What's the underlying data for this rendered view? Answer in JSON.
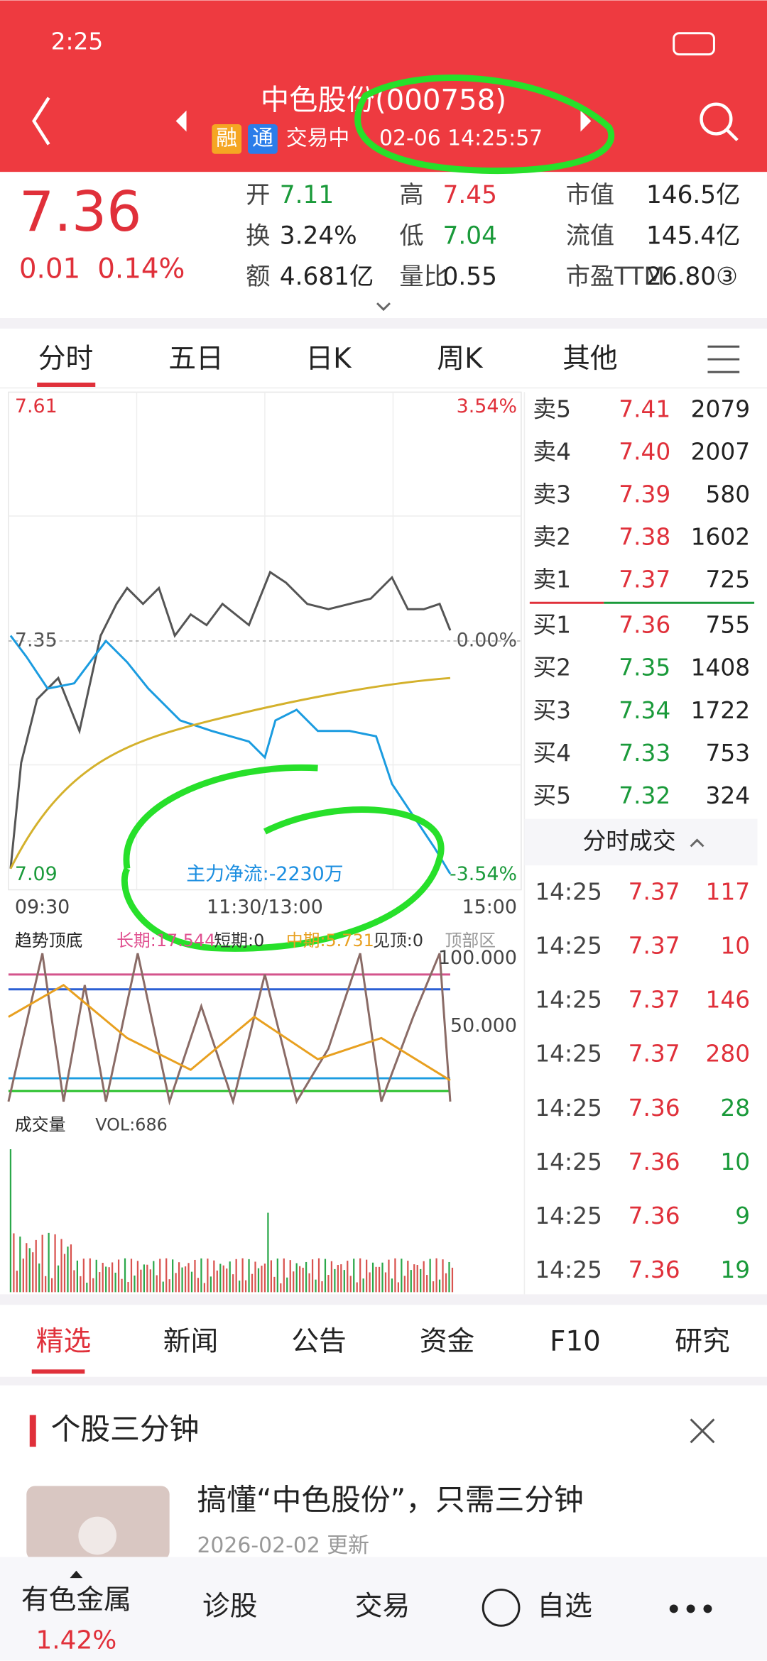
{
  "status_bar": {
    "time": "2:25"
  },
  "header": {
    "title": "中色股份(000758)",
    "tags": [
      "融",
      "通"
    ],
    "status": "交易中",
    "datetime": "02-06 14:25:57"
  },
  "quote": {
    "price": "7.36",
    "change": "0.01",
    "change_pct": "0.14%",
    "stats": [
      [
        "开",
        "7.11"
      ],
      [
        "高",
        "7.45"
      ],
      [
        "市值",
        "146.5亿"
      ],
      [
        "换",
        "3.24%"
      ],
      [
        "低",
        "7.04"
      ],
      [
        "流值",
        "145.4亿"
      ],
      [
        "额",
        "4.681亿"
      ],
      [
        "量比",
        "0.55"
      ],
      [
        "市盈TTM",
        "26.80③"
      ]
    ]
  },
  "tabs": [
    "分时",
    "五日",
    "日K",
    "周K",
    "其他"
  ],
  "intraday": {
    "high_price": "7.61",
    "high_pct": "3.54%",
    "base_price": "7.35",
    "base_pct": "0.00%",
    "low_price": "7.09",
    "low_pct": "-3.54%",
    "times": [
      "09:30",
      "11:30/13:00",
      "15:00"
    ],
    "net_flow": "主力净流:-2230万"
  },
  "indicator": {
    "name": "趋势顶底",
    "params": [
      "长期:17.544",
      "短期:0",
      "中期:5.731",
      "见顶:0",
      "顶部区"
    ],
    "levels": [
      "100.000",
      "50.000"
    ]
  },
  "volume": {
    "name": "成交量",
    "value": "VOL:686"
  },
  "order_book": {
    "asks": [
      [
        "卖5",
        "7.41",
        "2079"
      ],
      [
        "卖4",
        "7.40",
        "2007"
      ],
      [
        "卖3",
        "7.39",
        "580"
      ],
      [
        "卖2",
        "7.38",
        "1602"
      ],
      [
        "卖1",
        "7.37",
        "725"
      ]
    ],
    "bids": [
      [
        "买1",
        "7.36",
        "755"
      ],
      [
        "买2",
        "7.35",
        "1408"
      ],
      [
        "买3",
        "7.34",
        "1722"
      ],
      [
        "买4",
        "7.33",
        "753"
      ],
      [
        "买5",
        "7.32",
        "324"
      ]
    ]
  },
  "trades": {
    "title": "分时成交",
    "rows": [
      [
        "14:25",
        "7.37",
        "117"
      ],
      [
        "14:25",
        "7.37",
        "10"
      ],
      [
        "14:25",
        "7.37",
        "146"
      ],
      [
        "14:25",
        "7.37",
        "280"
      ],
      [
        "14:25",
        "7.36",
        "28"
      ],
      [
        "14:25",
        "7.36",
        "10"
      ],
      [
        "14:25",
        "7.36",
        "9"
      ],
      [
        "14:25",
        "7.36",
        "19"
      ]
    ]
  },
  "content_tabs": [
    "精选",
    "新闻",
    "公告",
    "资金",
    "F10",
    "研究"
  ],
  "card": {
    "title": "个股三分钟",
    "headline": "搞懂“中色股份”，只需三分钟",
    "date": "2026-02-02 更新"
  },
  "nav": {
    "sector": "有色金属",
    "sector_pct": "1.42%",
    "items": [
      "诊股",
      "交易",
      "自选"
    ]
  }
}
